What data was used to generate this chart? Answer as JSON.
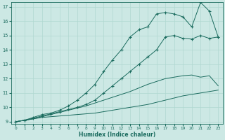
{
  "xlabel": "Humidex (Indice chaleur)",
  "x_values": [
    0,
    1,
    2,
    3,
    4,
    5,
    6,
    7,
    8,
    9,
    10,
    11,
    12,
    13,
    14,
    15,
    16,
    17,
    18,
    19,
    20,
    21,
    22,
    23
  ],
  "line1": [
    9.0,
    9.1,
    9.2,
    9.3,
    9.35,
    9.4,
    9.45,
    9.5,
    9.55,
    9.6,
    9.7,
    9.8,
    9.9,
    10.0,
    10.1,
    10.2,
    10.35,
    10.5,
    10.65,
    10.8,
    10.9,
    11.0,
    11.1,
    11.2
  ],
  "line2": [
    9.0,
    9.1,
    9.2,
    9.35,
    9.5,
    9.65,
    9.8,
    9.95,
    10.1,
    10.3,
    10.5,
    10.7,
    10.9,
    11.1,
    11.35,
    11.6,
    11.8,
    12.0,
    12.1,
    12.2,
    12.25,
    12.1,
    12.2,
    11.5
  ],
  "line3": [
    9.0,
    9.1,
    9.25,
    9.4,
    9.55,
    9.7,
    9.85,
    10.0,
    10.2,
    10.5,
    11.0,
    11.5,
    12.0,
    12.5,
    13.0,
    13.5,
    14.0,
    14.9,
    15.0,
    14.8,
    14.75,
    15.0,
    14.8,
    14.9
  ],
  "line4": [
    9.0,
    9.1,
    9.3,
    9.5,
    9.6,
    9.8,
    10.1,
    10.5,
    11.0,
    11.6,
    12.5,
    13.3,
    14.0,
    14.9,
    15.4,
    15.6,
    16.5,
    16.6,
    16.5,
    16.3,
    15.6,
    17.3,
    16.7,
    14.9
  ],
  "ylim": [
    9,
    17
  ],
  "xlim": [
    0,
    23
  ],
  "yticks": [
    9,
    10,
    11,
    12,
    13,
    14,
    15,
    16,
    17
  ],
  "xticks": [
    0,
    1,
    2,
    3,
    4,
    5,
    6,
    7,
    8,
    9,
    10,
    11,
    12,
    13,
    14,
    15,
    16,
    17,
    18,
    19,
    20,
    21,
    22,
    23
  ],
  "line_color": "#1a6b5e",
  "bg_color": "#cce8e4",
  "grid_color": "#b0d8d0"
}
